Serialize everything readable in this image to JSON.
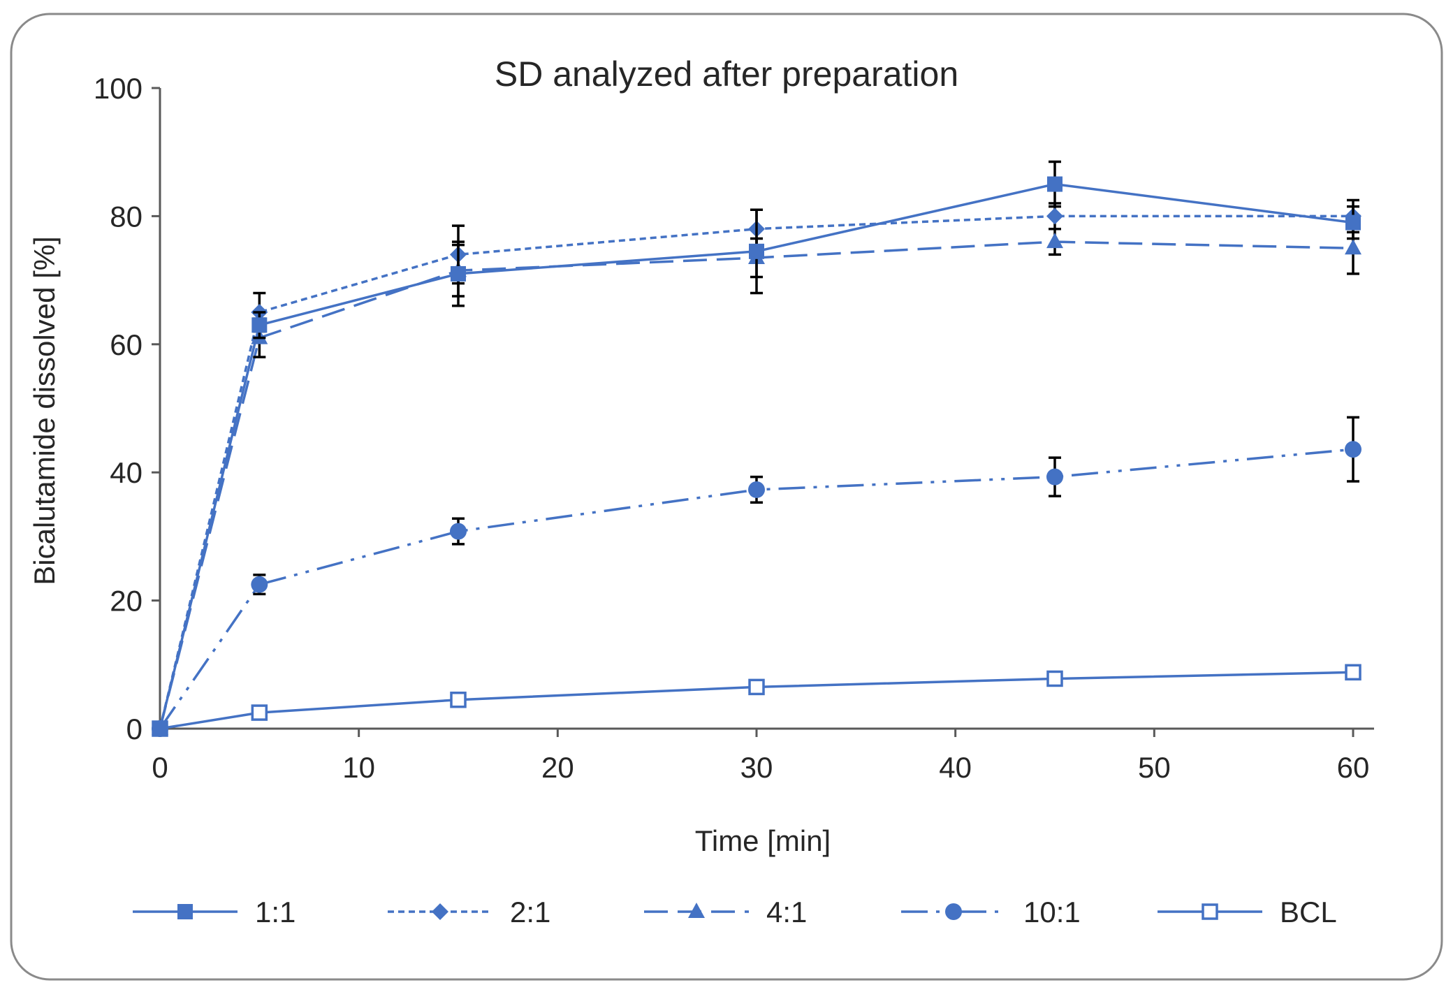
{
  "chart_data": {
    "type": "line",
    "title": "SD analyzed after preparation",
    "xlabel": "Time [min]",
    "ylabel": "Bicalutamide dissolved [%]",
    "xlim": [
      0,
      60
    ],
    "ylim": [
      0,
      100
    ],
    "x_ticks": [
      0,
      10,
      20,
      30,
      40,
      50,
      60
    ],
    "y_ticks": [
      0,
      20,
      40,
      60,
      80,
      100
    ],
    "grid": false,
    "legend_position": "bottom",
    "line_color": "#4472C4",
    "x": [
      0,
      5,
      15,
      30,
      45,
      60
    ],
    "series": [
      {
        "name": "1:1",
        "marker": "square",
        "dash": "solid",
        "values": [
          0,
          63,
          71,
          74.5,
          85,
          79
        ],
        "errors": [
          0,
          2,
          5,
          6.5,
          3.5,
          2.5
        ]
      },
      {
        "name": "2:1",
        "marker": "diamond",
        "dash": "short-dash",
        "values": [
          0,
          65,
          74,
          78,
          80,
          80
        ],
        "errors": [
          0,
          3,
          4.5,
          3,
          2,
          2.5
        ]
      },
      {
        "name": "4:1",
        "marker": "triangle",
        "dash": "long-dash",
        "values": [
          0,
          61,
          71.5,
          73.5,
          76,
          75
        ],
        "errors": [
          0,
          3,
          4,
          3,
          2,
          4
        ]
      },
      {
        "name": "10:1",
        "marker": "circle",
        "dash": "dash-dot-dot",
        "values": [
          0,
          22.5,
          30.8,
          37.3,
          39.3,
          43.6
        ],
        "errors": [
          0,
          1.5,
          2,
          2,
          3,
          5
        ]
      },
      {
        "name": "BCL",
        "marker": "square-open",
        "dash": "solid",
        "values": [
          0,
          2.5,
          4.5,
          6.5,
          7.8,
          8.8
        ],
        "errors": [
          0,
          0.5,
          0.5,
          0.8,
          1,
          1
        ]
      }
    ]
  }
}
